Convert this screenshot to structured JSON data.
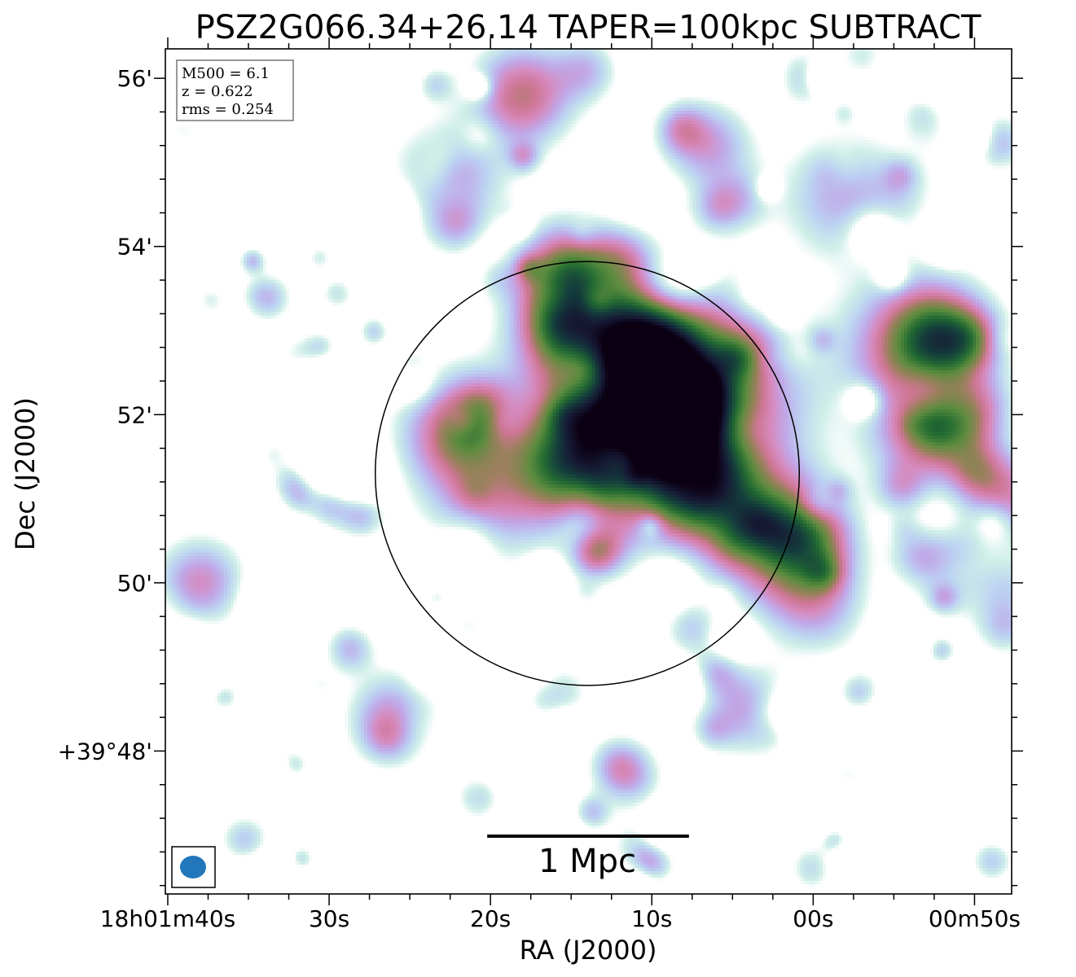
{
  "chart_data": {
    "type": "heatmap",
    "title": "PSZ2G066.34+26.14 TAPER=100kpc SUBTRACT",
    "xlabel": "RA (J2000)",
    "ylabel": "Dec (J2000)",
    "colormap": "cubehelix (reversed, pastel)",
    "ra_major_ticks": [
      {
        "label": "18h01m40s",
        "ra_sec": 40
      },
      {
        "label": "30s",
        "ra_sec": 30
      },
      {
        "label": "20s",
        "ra_sec": 20
      },
      {
        "label": "10s",
        "ra_sec": 10
      },
      {
        "label": "00s",
        "ra_sec": 0
      },
      {
        "label": "00m50s",
        "ra_sec": -10
      }
    ],
    "dec_major_ticks": [
      {
        "label": "56'",
        "dec_arcmin": 56
      },
      {
        "label": "54'",
        "dec_arcmin": 54
      },
      {
        "label": "52'",
        "dec_arcmin": 52
      },
      {
        "label": "50'",
        "dec_arcmin": 50
      },
      {
        "label": "+39°48'",
        "dec_arcmin": 48
      }
    ],
    "ra_range_sec": [
      40.15,
      -12.3
    ],
    "dec_range_arcmin": [
      46.3,
      56.35
    ],
    "info_box": {
      "lines": [
        "M500 = 6.1",
        "z = 0.622",
        "rms = 0.254"
      ],
      "placement": "top-left"
    },
    "circle": {
      "center_ra_sec": 14.0,
      "center_dec_arcmin": 51.3,
      "radius_arcmin": 2.52
    },
    "scale_bar": {
      "label": "1 Mpc",
      "length_ra_sec": 12.5,
      "placement": "bottom-center"
    },
    "beam": {
      "placement": "bottom-left",
      "color": "#2277bb"
    },
    "emission_blobs": [
      {
        "ra": 8.6,
        "dec": 52.1,
        "peak": 1.0,
        "sigma": 0.35
      },
      {
        "ra": 9.5,
        "dec": 52.0,
        "peak": 0.55,
        "sigma": 0.9
      },
      {
        "ra": 10.3,
        "dec": 52.8,
        "peak": 0.68,
        "sigma": 0.4
      },
      {
        "ra": 11.3,
        "dec": 51.8,
        "peak": 0.55,
        "sigma": 0.5
      },
      {
        "ra": 7.0,
        "dec": 51.2,
        "peak": 0.62,
        "sigma": 0.4
      },
      {
        "ra": 15.0,
        "dec": 53.6,
        "peak": 0.6,
        "sigma": 0.4
      },
      {
        "ra": 14.2,
        "dec": 52.9,
        "peak": 0.38,
        "sigma": 0.5
      },
      {
        "ra": 15.4,
        "dec": 51.4,
        "peak": 0.45,
        "sigma": 0.4
      },
      {
        "ra": 22.0,
        "dec": 51.8,
        "peak": 0.4,
        "sigma": 0.45
      },
      {
        "ra": 2.6,
        "dec": 50.6,
        "peak": 0.46,
        "sigma": 0.5
      },
      {
        "ra": 0.4,
        "dec": 50.5,
        "peak": 0.35,
        "sigma": 0.35
      },
      {
        "ra": -6.5,
        "dec": 52.8,
        "peak": 0.45,
        "sigma": 0.55
      },
      {
        "ra": -7.9,
        "dec": 52.9,
        "peak": 0.4,
        "sigma": 0.35
      },
      {
        "ra": 18.0,
        "dec": 55.8,
        "peak": 0.4,
        "sigma": 0.4
      },
      {
        "ra": 5.8,
        "dec": 52.4,
        "peak": 0.3,
        "sigma": 0.6
      },
      {
        "ra": 20.0,
        "dec": 51.0,
        "peak": 0.25,
        "sigma": 0.5
      },
      {
        "ra": -12.0,
        "dec": 51.0,
        "peak": 0.32,
        "sigma": 0.35
      },
      {
        "ra": -9.0,
        "dec": 51.8,
        "peak": 0.3,
        "sigma": 0.35
      },
      {
        "ra": 38.0,
        "dec": 50.0,
        "peak": 0.3,
        "sigma": 0.35
      },
      {
        "ra": 26.0,
        "dec": 48.4,
        "peak": 0.3,
        "sigma": 0.35
      },
      {
        "ra": 4.0,
        "dec": 48.5,
        "peak": 0.28,
        "sigma": 0.35
      },
      {
        "ra": -9.0,
        "dec": 50.2,
        "peak": 0.28,
        "sigma": 0.35
      },
      {
        "ra": 0.0,
        "dec": 49.8,
        "peak": 0.26,
        "sigma": 0.4
      },
      {
        "ra": 22.5,
        "dec": 54.8,
        "peak": 0.25,
        "sigma": 0.45
      },
      {
        "ra": 6.5,
        "dec": 55.2,
        "peak": 0.26,
        "sigma": 0.35
      },
      {
        "ra": -2.0,
        "dec": 54.6,
        "peak": 0.24,
        "sigma": 0.5
      },
      {
        "ra": -6.5,
        "dec": 51.7,
        "peak": 0.26,
        "sigma": 0.4
      }
    ]
  }
}
